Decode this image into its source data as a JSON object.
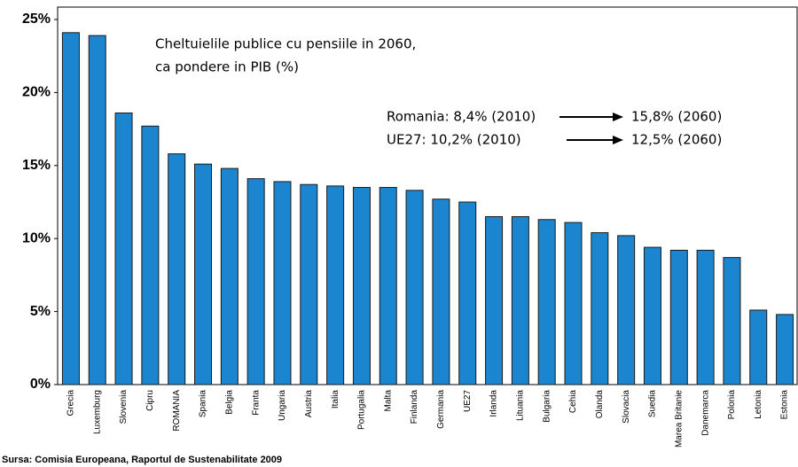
{
  "chart_data": {
    "type": "bar",
    "title": [
      "Cheltuielile publice cu pensiile in 2060,",
      "ca pondere in PIB (%)"
    ],
    "annotations": [
      "Romania: 8,4% (2010)",
      "15,8% (2060)",
      "UE27: 10,2% (2010)",
      "12,5% (2060)"
    ],
    "source": "Sursa: Comisia Europeana, Raportul de Sustenabilitate 2009",
    "categories": [
      "Grecia",
      "Luxemburg",
      "Slovenia",
      "Cipru",
      "ROMANIA",
      "Spania",
      "Belgia",
      "Franta",
      "Ungaria",
      "Austria",
      "Italia",
      "Portugalia",
      "Malta",
      "Finlanda",
      "Germania",
      "UE27",
      "Irlanda",
      "Lituania",
      "Bulgaria",
      "Cehia",
      "Olanda",
      "Slovacia",
      "Suedia",
      "Marea Britanie",
      "Danemarca",
      "Polonia",
      "Letonia",
      "Estonia"
    ],
    "values": [
      24.1,
      23.9,
      18.6,
      17.7,
      15.8,
      15.1,
      14.8,
      14.1,
      13.9,
      13.7,
      13.6,
      13.5,
      13.5,
      13.3,
      12.7,
      12.5,
      11.5,
      11.5,
      11.3,
      11.1,
      10.4,
      10.2,
      9.4,
      9.2,
      9.2,
      8.7,
      5.1,
      4.8
    ],
    "color": "#1b86cf",
    "ylim": [
      0,
      25
    ],
    "yticks": [
      {
        "value": 0,
        "label": "0%"
      },
      {
        "value": 5,
        "label": "5%"
      },
      {
        "value": 10,
        "label": "10%"
      },
      {
        "value": 15,
        "label": "15%"
      },
      {
        "value": 20,
        "label": "20%"
      },
      {
        "value": 25,
        "label": "25%"
      }
    ],
    "grid": false
  }
}
